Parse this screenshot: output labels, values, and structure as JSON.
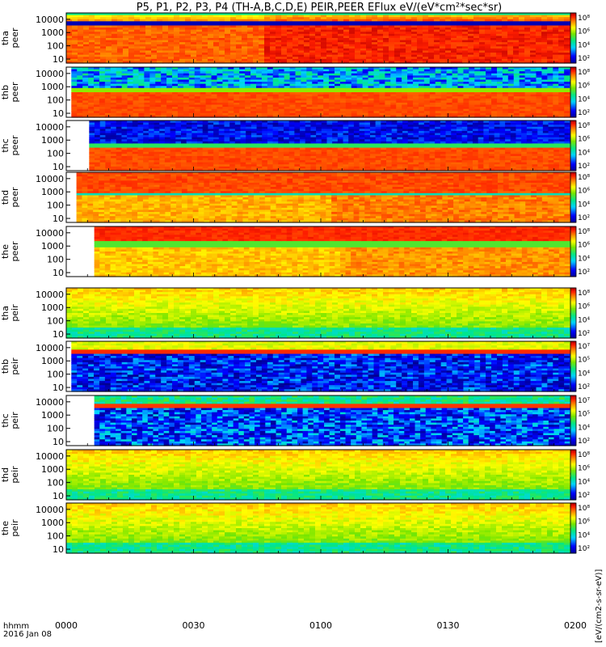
{
  "title": "P5, P1, P2, P3, P4 (TH-A,B,C,D,E) PEIR,PEER EFlux eV/(eV*cm²*sec*sr)",
  "time_axis_label": "hhmm",
  "date_label": "2016 Jan 08",
  "colorbar_unit_label": "[eV/(cm2-s-sr-eV)]",
  "chart_data": {
    "type": "heatmap",
    "title": "P5, P1, P2, P3, P4 (TH-A,B,C,D,E) PEIR,PEER EFlux eV/(eV*cm²*sec*sr)",
    "x": {
      "ticks": [
        "0000",
        "0030",
        "0100",
        "0130",
        "0200"
      ],
      "range_minutes": [
        0,
        120
      ]
    },
    "y": {
      "scale": "log",
      "ticks": [
        "10",
        "100",
        "1000",
        "10000"
      ],
      "range": [
        5,
        30000
      ]
    },
    "colormap": "rainbow",
    "panels": [
      {
        "ylabel": [
          "tha",
          "peer"
        ],
        "zticks": [
          "10⁸",
          "10⁶",
          "10⁴",
          "10²"
        ],
        "pattern": "tha-peer",
        "start": 0
      },
      {
        "ylabel": [
          "thb",
          "peer"
        ],
        "zticks": [
          "10⁸",
          "10⁶",
          "10⁴",
          "10²"
        ],
        "pattern": "thb-peer",
        "start": 0.01
      },
      {
        "ylabel": [
          "thc",
          "peer"
        ],
        "zticks": [
          "10⁸",
          "10⁶",
          "10⁴",
          "10²"
        ],
        "pattern": "thc-peer",
        "start": 0.045
      },
      {
        "ylabel": [
          "thd",
          "peer"
        ],
        "zticks": [
          "10⁸",
          "10⁶",
          "10⁴",
          "10²"
        ],
        "pattern": "thd-peer",
        "start": 0.02
      },
      {
        "ylabel": [
          "the",
          "peer"
        ],
        "zticks": [
          "10⁸",
          "10⁶",
          "10⁴",
          "10²"
        ],
        "pattern": "the-peer",
        "start": 0.055
      },
      {
        "ylabel": [
          "tha",
          "peir"
        ],
        "zticks": [
          "10⁸",
          "10⁶",
          "10⁴",
          "10²"
        ],
        "pattern": "tha-peir",
        "start": 0
      },
      {
        "ylabel": [
          "thb",
          "peir"
        ],
        "zticks": [
          "10⁷",
          "10⁵",
          "10⁴",
          "10²"
        ],
        "pattern": "thb-peir",
        "start": 0.01
      },
      {
        "ylabel": [
          "thc",
          "peir"
        ],
        "zticks": [
          "10⁷",
          "10⁵",
          "10⁴",
          "10²"
        ],
        "pattern": "thc-peir",
        "start": 0.055
      },
      {
        "ylabel": [
          "thd",
          "peir"
        ],
        "zticks": [
          "10⁸",
          "10⁶",
          "10⁴",
          "10²"
        ],
        "pattern": "thd-peir",
        "start": 0
      },
      {
        "ylabel": [
          "the",
          "peir"
        ],
        "zticks": [
          "10⁸",
          "10⁶",
          "10⁴",
          "10²"
        ],
        "pattern": "the-peir",
        "start": 0
      }
    ]
  }
}
